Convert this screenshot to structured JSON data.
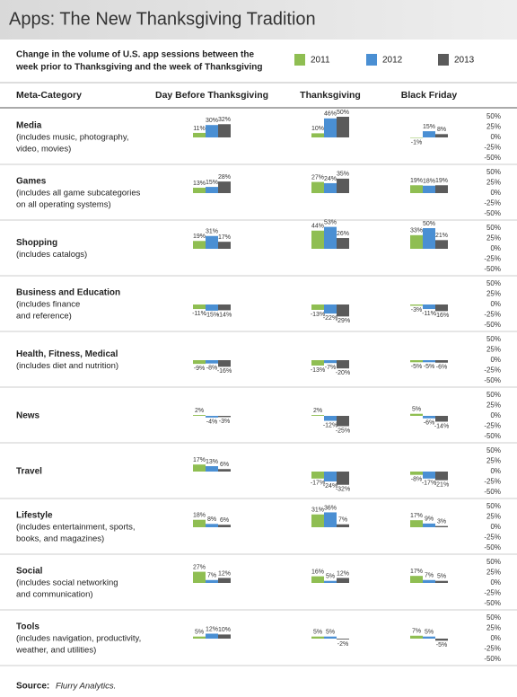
{
  "chart_data": {
    "type": "bar",
    "title": "Apps: The New Thanksgiving Tradition",
    "subtitle": [
      "Change in the volume of U.S. app sessions between the",
      "week prior to Thanksgiving and the week of Thanksgiving"
    ],
    "series": [
      {
        "name": "2011",
        "color": "#8fbe52"
      },
      {
        "name": "2012",
        "color": "#4a8fd3"
      },
      {
        "name": "2013",
        "color": "#5b5b5b"
      }
    ],
    "columns": [
      "Meta-Category",
      "Day Before Thanksgiving",
      "Thanksgiving",
      "Black Friday"
    ],
    "ylim": [
      -50,
      50
    ],
    "yticks": [
      {
        "value": 50,
        "label": "50%"
      },
      {
        "value": 25,
        "label": "25%"
      },
      {
        "value": 0,
        "label": "0%"
      },
      {
        "value": -25,
        "label": "-25%"
      },
      {
        "value": -50,
        "label": "-50%"
      }
    ],
    "rows": [
      {
        "name": "Media",
        "description": [
          "(includes music, photography,",
          "video, movies)"
        ],
        "groups": [
          {
            "values": [
              11,
              30,
              32
            ],
            "value_labels": [
              "11%",
              "30%",
              "32%"
            ]
          },
          {
            "values": [
              10,
              46,
              50
            ],
            "value_labels": [
              "10%",
              "46%",
              "50%"
            ]
          },
          {
            "values": [
              -1,
              15,
              8
            ],
            "value_labels": [
              "-1%",
              "15%",
              "8%"
            ]
          }
        ]
      },
      {
        "name": "Games",
        "description": [
          "(includes all game subcategories",
          "on all operating systems)"
        ],
        "groups": [
          {
            "values": [
              13,
              15,
              28
            ],
            "value_labels": [
              "13%",
              "15%",
              "28%"
            ]
          },
          {
            "values": [
              27,
              24,
              35
            ],
            "value_labels": [
              "27%",
              "24%",
              "35%"
            ]
          },
          {
            "values": [
              19,
              18,
              19
            ],
            "value_labels": [
              "19%",
              "18%",
              "19%"
            ]
          }
        ]
      },
      {
        "name": "Shopping",
        "description": [
          "(includes catalogs)"
        ],
        "groups": [
          {
            "values": [
              19,
              31,
              17
            ],
            "value_labels": [
              "19%",
              "31%",
              "17%"
            ]
          },
          {
            "values": [
              44,
              53,
              26
            ],
            "value_labels": [
              "44%",
              "53%",
              "26%"
            ]
          },
          {
            "values": [
              33,
              50,
              21
            ],
            "value_labels": [
              "33%",
              "50%",
              "21%"
            ]
          }
        ]
      },
      {
        "name": "Business and Education",
        "description": [
          "(includes finance",
          "and reference)"
        ],
        "groups": [
          {
            "values": [
              -11,
              -15,
              -14
            ],
            "value_labels": [
              "-11%",
              "-15%",
              "-14%"
            ]
          },
          {
            "values": [
              -13,
              -22,
              -29
            ],
            "value_labels": [
              "-13%",
              "-22%",
              "-29%"
            ]
          },
          {
            "values": [
              -3,
              -11,
              -16
            ],
            "value_labels": [
              "-3%",
              "-11%",
              "-16%"
            ]
          }
        ]
      },
      {
        "name": "Health, Fitness, Medical",
        "description": [
          "(includes diet and nutrition)"
        ],
        "groups": [
          {
            "values": [
              -9,
              -8,
              -16
            ],
            "value_labels": [
              "-9%",
              "-8%",
              "-16%"
            ]
          },
          {
            "values": [
              -13,
              -7,
              -20
            ],
            "value_labels": [
              "-13%",
              "-7%",
              "-20%"
            ]
          },
          {
            "values": [
              -5,
              -5,
              -6
            ],
            "value_labels": [
              "-5%",
              "-5%",
              "-6%"
            ]
          }
        ]
      },
      {
        "name": "News",
        "description": [],
        "groups": [
          {
            "values": [
              2,
              -4,
              -3
            ],
            "value_labels": [
              "2%",
              "-4%",
              "-3%"
            ]
          },
          {
            "values": [
              2,
              -12,
              -25
            ],
            "value_labels": [
              "2%",
              "-12%",
              "-25%"
            ]
          },
          {
            "values": [
              5,
              -6,
              -14
            ],
            "value_labels": [
              "5%",
              "-6%",
              "-14%"
            ]
          }
        ]
      },
      {
        "name": "Travel",
        "description": [],
        "groups": [
          {
            "values": [
              17,
              13,
              6
            ],
            "value_labels": [
              "17%",
              "13%",
              "6%"
            ]
          },
          {
            "values": [
              -17,
              -24,
              -32
            ],
            "value_labels": [
              "-17%",
              "-24%",
              "-32%"
            ]
          },
          {
            "values": [
              -8,
              -17,
              -21
            ],
            "value_labels": [
              "-8%",
              "-17%",
              "-21%"
            ]
          }
        ]
      },
      {
        "name": "Lifestyle",
        "description": [
          "(includes entertainment, sports,",
          "books, and magazines)"
        ],
        "groups": [
          {
            "values": [
              18,
              8,
              6
            ],
            "value_labels": [
              "18%",
              "8%",
              "6%"
            ]
          },
          {
            "values": [
              31,
              36,
              7
            ],
            "value_labels": [
              "31%",
              "36%",
              "7%"
            ]
          },
          {
            "values": [
              17,
              9,
              3
            ],
            "value_labels": [
              "17%",
              "9%",
              "3%"
            ]
          }
        ]
      },
      {
        "name": "Social",
        "description": [
          "(includes social networking",
          "and communication)"
        ],
        "groups": [
          {
            "values": [
              27,
              7,
              12
            ],
            "value_labels": [
              "27%",
              "7%",
              "12%"
            ]
          },
          {
            "values": [
              16,
              5,
              12
            ],
            "value_labels": [
              "16%",
              "5%",
              "12%"
            ]
          },
          {
            "values": [
              17,
              7,
              5
            ],
            "value_labels": [
              "17%",
              "7%",
              "5%"
            ]
          }
        ]
      },
      {
        "name": "Tools",
        "description": [
          "(includes navigation, productivity,",
          "weather, and utilities)"
        ],
        "groups": [
          {
            "values": [
              5,
              12,
              10
            ],
            "value_labels": [
              "5%",
              "12%",
              "10%"
            ]
          },
          {
            "values": [
              5,
              5,
              -2
            ],
            "value_labels": [
              "5%",
              "5%",
              "-2%"
            ]
          },
          {
            "values": [
              7,
              5,
              -5
            ],
            "value_labels": [
              "7%",
              "5%",
              "-5%"
            ]
          }
        ]
      }
    ],
    "source": {
      "label": "Source:",
      "text": "Flurry Analytics."
    }
  }
}
